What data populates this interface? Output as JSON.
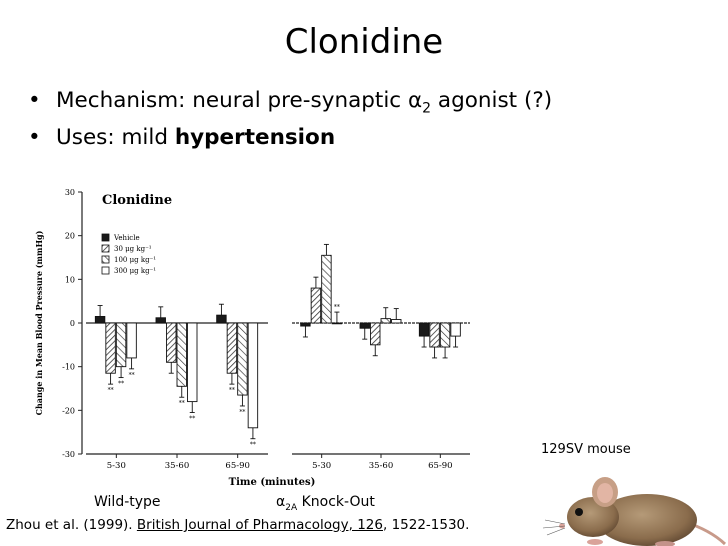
{
  "slide": {
    "title": "Clonidine",
    "bullet1_pre": "Mechanism: neural pre-synaptic α",
    "bullet1_sub": "2",
    "bullet1_post": " agonist (?)",
    "bullet2_pre": "Uses: mild ",
    "bullet2_bold": "hypertension",
    "bullet_glyph": "•"
  },
  "labels": {
    "wild_type": "Wild-type",
    "ko_pre": "α",
    "ko_sub": "2A",
    "ko_post": " Knock-Out",
    "mouse_caption": "129SV mouse"
  },
  "citation": {
    "authors": "Zhou et al. (1999). ",
    "journal": "British Journal of Pharmacology, 126",
    "pages": ", 1522-1530."
  },
  "chart_data": {
    "type": "bar",
    "title": "Clonidine",
    "ylabel": "Change in Mean Blood Pressure (mmHg)",
    "xlabel": "Time (minutes)",
    "ylim": [
      -30,
      30
    ],
    "yticks": [
      30,
      20,
      10,
      0,
      -10,
      -20,
      -30
    ],
    "groups": [
      {
        "panel": "Wild-type",
        "categories": [
          "5-30",
          "35-60",
          "65-90"
        ],
        "series": [
          {
            "name": "Vehicle",
            "values": [
              1.5,
              1.2,
              1.8
            ]
          },
          {
            "name": "30 μg kg⁻¹",
            "values": [
              -11.5,
              -9,
              -11.5
            ]
          },
          {
            "name": "100 μg kg⁻¹",
            "values": [
              -10,
              -14.5,
              -16.5
            ]
          },
          {
            "name": "300 μg kg⁻¹",
            "values": [
              -8,
              -18,
              -24
            ]
          }
        ]
      },
      {
        "panel": "α2A Knock-Out",
        "categories": [
          "5-30",
          "35-60",
          "65-90"
        ],
        "series": [
          {
            "name": "Vehicle",
            "values": [
              -0.7,
              -1.2,
              -3
            ]
          },
          {
            "name": "30 μg kg⁻¹",
            "values": [
              8,
              -5,
              -5.5
            ]
          },
          {
            "name": "100 μg kg⁻¹",
            "values": [
              15.5,
              1,
              -5.5
            ]
          },
          {
            "name": "300 μg kg⁻¹",
            "values": [
              0,
              0.8,
              -3
            ]
          }
        ]
      }
    ],
    "legend": [
      "Vehicle",
      "30 μg kg⁻¹",
      "100 μg kg⁻¹",
      "300 μg kg⁻¹"
    ],
    "legend_position": "top-left",
    "significance_mark": "**",
    "grid": false
  },
  "colors": {
    "vehicle": "#1a1a1a",
    "hatch": "#333333",
    "open": "#ffffff",
    "axis": "#222222"
  },
  "icons": {
    "mouse": "mouse-photo-icon"
  }
}
